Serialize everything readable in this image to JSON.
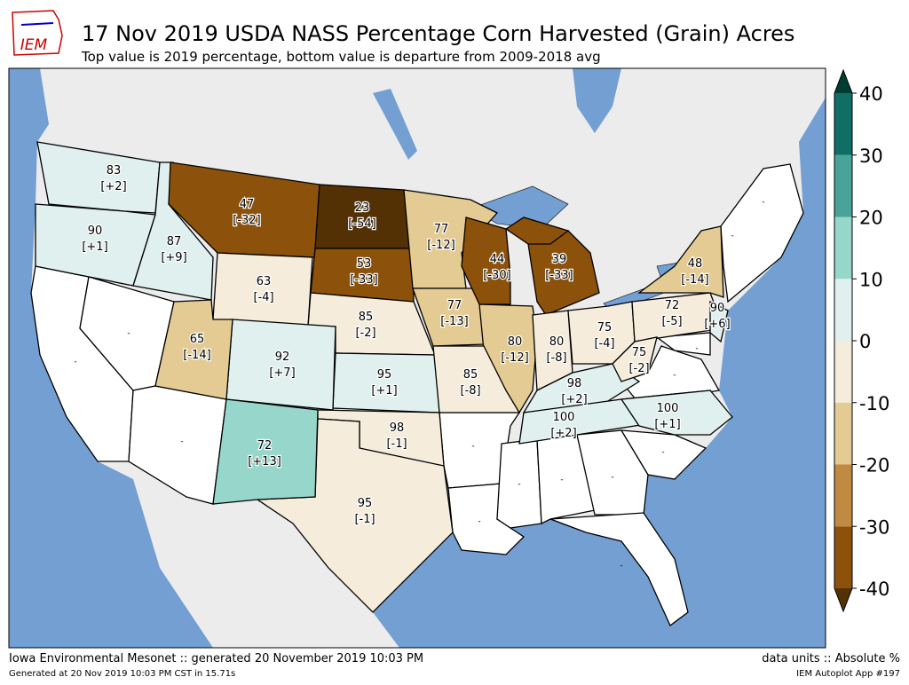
{
  "header": {
    "logo_text": "IEM",
    "title": "17 Nov 2019 USDA NASS Percentage Corn Harvested (Grain) Acres",
    "subtitle": "Top value is 2019 percentage, bottom value is departure from 2009-2018 avg"
  },
  "states": [
    {
      "value": 83,
      "departure": 2,
      "departure_label": "[+2]"
    },
    {
      "value": 90,
      "departure": 1,
      "departure_label": "[+1]"
    },
    {
      "value": 87,
      "departure": 9,
      "departure_label": "[+9]"
    },
    {
      "value": 47,
      "departure": -32,
      "departure_label": "[-32]"
    },
    {
      "value": 23,
      "departure": -54,
      "departure_label": "[-54]"
    },
    {
      "value": 53,
      "departure": -33,
      "departure_label": "[-33]"
    },
    {
      "value": 63,
      "departure": -4,
      "departure_label": "[-4]"
    },
    {
      "value": 85,
      "departure": -2,
      "departure_label": "[-2]"
    },
    {
      "value": 77,
      "departure": -12,
      "departure_label": "[-12]"
    },
    {
      "value": 77,
      "departure": -13,
      "departure_label": "[-13]"
    },
    {
      "value": 44,
      "departure": -30,
      "departure_label": "[-30]"
    },
    {
      "value": 39,
      "departure": -33,
      "departure_label": "[-33]"
    },
    {
      "value": 80,
      "departure": -12,
      "departure_label": "[-12]"
    },
    {
      "value": 80,
      "departure": -8,
      "departure_label": "[-8]"
    },
    {
      "value": 75,
      "departure": -4,
      "departure_label": "[-4]"
    },
    {
      "value": 98,
      "departure": 2,
      "departure_label": "[+2]"
    },
    {
      "value": 100,
      "departure": 2,
      "departure_label": "[+2]"
    },
    {
      "value": 100,
      "departure": 1,
      "departure_label": "[+1]"
    },
    {
      "value": 72,
      "departure": -5,
      "departure_label": "[-5]"
    },
    {
      "value": 48,
      "departure": -14,
      "departure_label": "[-14]"
    },
    {
      "value": 75,
      "departure": -2,
      "departure_label": "[-2]"
    },
    {
      "value": 90,
      "departure": 6,
      "departure_label": "[+6]"
    },
    {
      "value": 95,
      "departure": 1,
      "departure_label": "[+1]"
    },
    {
      "value": 85,
      "departure": -8,
      "departure_label": "[-8]"
    },
    {
      "value": 98,
      "departure": -1,
      "departure_label": "[-1]"
    },
    {
      "value": 95,
      "departure": -1,
      "departure_label": "[-1]"
    },
    {
      "value": 92,
      "departure": 7,
      "departure_label": "[+7]"
    },
    {
      "value": 65,
      "departure": -14,
      "departure_label": "[-14]"
    },
    {
      "value": 72,
      "departure": 13,
      "departure_label": "[+13]"
    }
  ],
  "no_data_label": "-",
  "colorbar": {
    "bounds": [
      -40,
      -30,
      -20,
      -10,
      0,
      10,
      20,
      30,
      40
    ],
    "colors": [
      "#8c510a",
      "#c08a43",
      "#e4cb93",
      "#f5ecdc",
      "#dff0ee",
      "#97d7cb",
      "#4aa399",
      "#0f6e65"
    ],
    "under_color": "#543005",
    "over_color": "#003c30",
    "ticks": [
      -40,
      -30,
      -20,
      -10,
      0,
      10,
      20,
      30,
      40
    ]
  },
  "footer": {
    "left": "Iowa Environmental Mesonet :: generated 20 November 2019 10:03 PM",
    "right": "data units :: Absolute %",
    "left_small": "Generated at 20 Nov 2019 10:03 PM CST in 15.71s",
    "right_small": "IEM Autoplot App #197"
  }
}
